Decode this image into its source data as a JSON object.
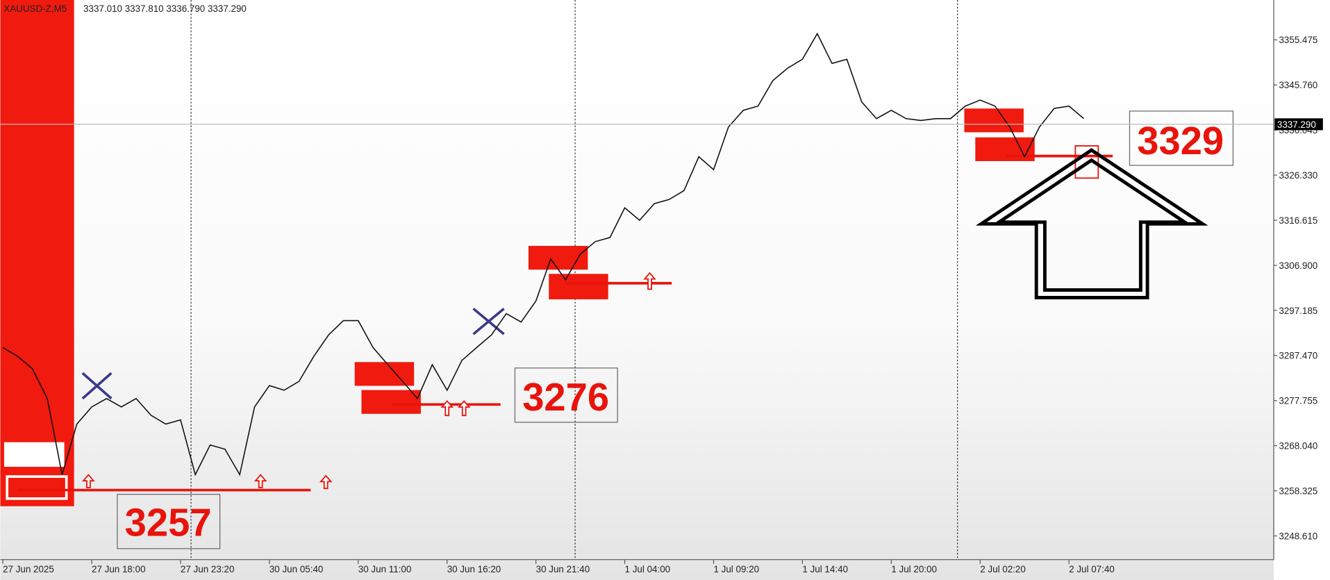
{
  "header": {
    "symbol": "XAUUSD-Z,M5",
    "ohlc": "3337.010 3337.810 3336.790 3337.290"
  },
  "chart_data": {
    "type": "line",
    "color": "#111111",
    "values": [
      3289.2,
      3287.3,
      3284.6,
      3278.2,
      3261.8,
      3272.7,
      3276.4,
      3278.2,
      3276.4,
      3278.2,
      3274.6,
      3272.7,
      3273.6,
      3261.8,
      3268.2,
      3267.3,
      3261.8,
      3276.4,
      3281.0,
      3280.0,
      3281.9,
      3287.3,
      3291.9,
      3295.0,
      3295.0,
      3289.2,
      3285.5,
      3281.9,
      3278.2,
      3285.5,
      3280.0,
      3286.4,
      3289.2,
      3291.9,
      3296.5,
      3294.7,
      3299.2,
      3308.3,
      3303.8,
      3309.3,
      3312.0,
      3312.9,
      3319.3,
      3316.6,
      3320.2,
      3321.1,
      3323.0,
      3330.3,
      3327.5,
      3336.7,
      3340.3,
      3341.2,
      3346.7,
      3349.4,
      3351.3,
      3356.8,
      3350.4,
      3351.3,
      3342.1,
      3338.5,
      3340.3,
      3338.5,
      3338.1,
      3338.5,
      3338.5,
      3341.2,
      3342.5,
      3341.2,
      3336.7,
      3330.3,
      3336.7,
      3340.7,
      3341.2,
      3338.5
    ],
    "xlim": [
      0,
      86
    ],
    "xticks": [
      {
        "value": 0,
        "label": "27 Jun 2025"
      },
      {
        "value": 6,
        "label": "27 Jun 18:00"
      },
      {
        "value": 12,
        "label": "27 Jun 23:20"
      },
      {
        "value": 18,
        "label": "30 Jun 05:40"
      },
      {
        "value": 24,
        "label": "30 Jun 11:00"
      },
      {
        "value": 30,
        "label": "30 Jun 16:20"
      },
      {
        "value": 36,
        "label": "30 Jun 21:40"
      },
      {
        "value": 42,
        "label": "1 Jul 04:00"
      },
      {
        "value": 48,
        "label": "1 Jul 09:20"
      },
      {
        "value": 54,
        "label": "1 Jul 14:40"
      },
      {
        "value": 60,
        "label": "1 Jul 20:00"
      },
      {
        "value": 66,
        "label": "2 Jul 02:20"
      },
      {
        "value": 72,
        "label": "2 Jul 07:40"
      }
    ],
    "ylim": [
      3243.5,
      3364.06
    ],
    "yticks": [
      3355.475,
      {
        "value": 3345.76,
        "label": "3345.760"
      },
      3336.045,
      {
        "value": 3326.33,
        "label": "3326.330"
      },
      3316.615,
      {
        "value": 3306.9,
        "label": "3306.900"
      },
      3297.185,
      {
        "value": 3287.47,
        "label": "3287.470"
      },
      3277.755,
      {
        "value": 3268.04,
        "label": "3268.040"
      },
      3258.325,
      {
        "value": 3248.61,
        "label": "3248.610"
      }
    ],
    "last_price": {
      "value": 3337.29,
      "label": "3337.290"
    },
    "annotations": [
      "3257",
      "3276",
      "3329"
    ]
  }
}
